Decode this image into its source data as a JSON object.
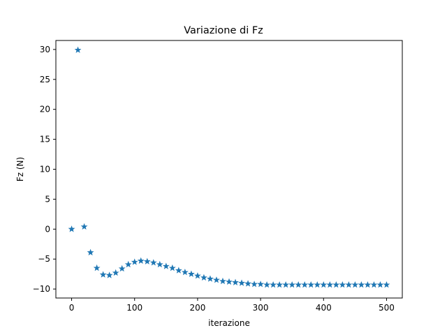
{
  "chart_data": {
    "type": "scatter",
    "title": "Variazione di Fz",
    "xlabel": "iterazione",
    "ylabel": "Fz (N)",
    "xlim": [
      -25,
      525
    ],
    "ylim": [
      -11.5,
      31.5
    ],
    "xticks": [
      0,
      100,
      200,
      300,
      400,
      500
    ],
    "yticks": [
      -10,
      -5,
      0,
      5,
      10,
      15,
      20,
      25,
      30
    ],
    "marker": "star",
    "color": "#1f77b4",
    "grid": false,
    "x": [
      0,
      10,
      20,
      30,
      40,
      50,
      60,
      70,
      80,
      90,
      100,
      110,
      120,
      130,
      140,
      150,
      160,
      170,
      180,
      190,
      200,
      210,
      220,
      230,
      240,
      250,
      260,
      270,
      280,
      290,
      300,
      310,
      320,
      330,
      340,
      350,
      360,
      370,
      380,
      390,
      400,
      410,
      420,
      430,
      440,
      450,
      460,
      470,
      480,
      490,
      500
    ],
    "y": [
      0.0,
      29.9,
      0.4,
      -3.9,
      -6.5,
      -7.6,
      -7.7,
      -7.3,
      -6.6,
      -5.9,
      -5.5,
      -5.3,
      -5.4,
      -5.6,
      -5.9,
      -6.2,
      -6.5,
      -6.9,
      -7.2,
      -7.5,
      -7.8,
      -8.1,
      -8.3,
      -8.5,
      -8.7,
      -8.8,
      -8.9,
      -9.0,
      -9.1,
      -9.2,
      -9.2,
      -9.3,
      -9.3,
      -9.3,
      -9.3,
      -9.3,
      -9.3,
      -9.3,
      -9.3,
      -9.3,
      -9.3,
      -9.3,
      -9.3,
      -9.3,
      -9.3,
      -9.3,
      -9.3,
      -9.3,
      -9.3,
      -9.3,
      -9.3
    ]
  }
}
